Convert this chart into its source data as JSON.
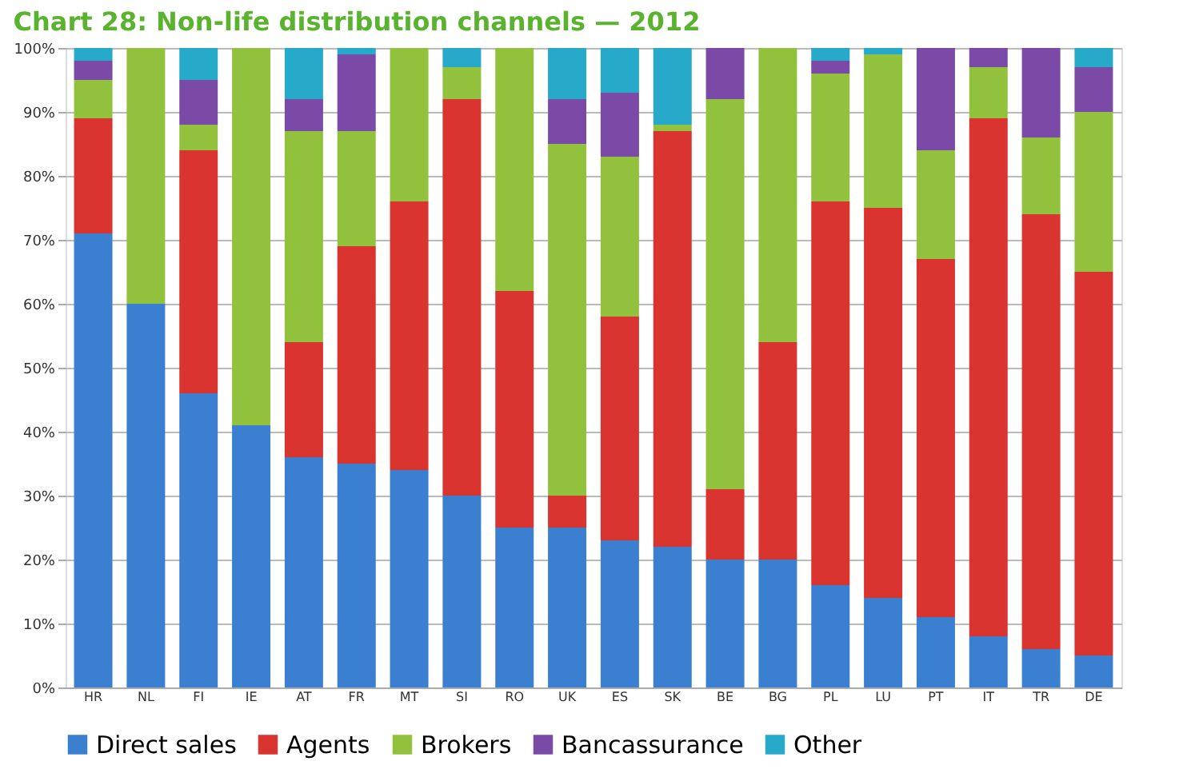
{
  "chart_data": {
    "type": "bar",
    "title": "Chart 28: Non-life distribution channels — 2012",
    "stacked": true,
    "categories": [
      "HR",
      "NL",
      "FI",
      "IE",
      "AT",
      "FR",
      "MT",
      "SI",
      "RO",
      "UK",
      "ES",
      "SK",
      "BE",
      "BG",
      "PL",
      "LU",
      "PT",
      "IT",
      "TR",
      "DE"
    ],
    "series": [
      {
        "name": "Direct sales",
        "color": "#3a7fd0",
        "values": [
          71,
          60,
          46,
          41,
          36,
          35,
          34,
          30,
          25,
          25,
          23,
          22,
          20,
          20,
          16,
          14,
          11,
          8,
          6,
          5
        ]
      },
      {
        "name": "Agents",
        "color": "#d9342f",
        "values": [
          18,
          0,
          38,
          0,
          18,
          34,
          42,
          62,
          37,
          5,
          35,
          65,
          11,
          34,
          60,
          61,
          56,
          81,
          68,
          60
        ]
      },
      {
        "name": "Brokers",
        "color": "#92c13e",
        "values": [
          6,
          40,
          4,
          59,
          33,
          18,
          24,
          5,
          38,
          55,
          25,
          1,
          61,
          46,
          20,
          24,
          17,
          8,
          12,
          25
        ]
      },
      {
        "name": "Bancassurance",
        "color": "#7a4aa6",
        "values": [
          3,
          0,
          7,
          0,
          5,
          12,
          0,
          0,
          0,
          7,
          10,
          0,
          8,
          0,
          2,
          0,
          16,
          3,
          14,
          7
        ]
      },
      {
        "name": "Other",
        "color": "#27a9c9",
        "values": [
          2,
          0,
          5,
          0,
          8,
          1,
          0,
          3,
          0,
          8,
          7,
          12,
          0,
          0,
          2,
          1,
          0,
          0,
          0,
          3
        ]
      }
    ],
    "ylim": [
      0,
      100
    ],
    "yticks": [
      {
        "value": 0,
        "label": "0%"
      },
      {
        "value": 10,
        "label": "10%"
      },
      {
        "value": 20,
        "label": "20%"
      },
      {
        "value": 30,
        "label": "30%"
      },
      {
        "value": 40,
        "label": "40%"
      },
      {
        "value": 50,
        "label": "50%"
      },
      {
        "value": 60,
        "label": "60%"
      },
      {
        "value": 70,
        "label": "70%"
      },
      {
        "value": 80,
        "label": "80%"
      },
      {
        "value": 90,
        "label": "90%"
      },
      {
        "value": 100,
        "label": "100%"
      }
    ],
    "grid": "y",
    "legend": "bottom"
  }
}
